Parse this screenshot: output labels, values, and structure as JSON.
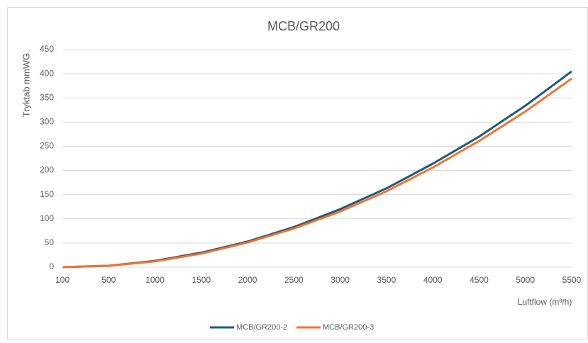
{
  "chart_data": {
    "type": "line",
    "title": "MCB/GR200",
    "y_label": "Tryktab mmWG",
    "x_label": "Luftflow (m³/h)",
    "categories": [
      "100",
      "500",
      "1000",
      "1500",
      "2000",
      "2500",
      "3000",
      "3500",
      "4000",
      "4500",
      "5000",
      "5500"
    ],
    "series": [
      {
        "name": "MCB/GR200-2",
        "color": "#1d5b79",
        "values": [
          0,
          3,
          13,
          30,
          53,
          83,
          120,
          163,
          214,
          270,
          334,
          405
        ]
      },
      {
        "name": "MCB/GR200-3",
        "color": "#ee7433",
        "values": [
          0,
          3,
          12,
          28,
          51,
          80,
          115,
          157,
          206,
          261,
          322,
          390
        ]
      }
    ],
    "ylim": [
      0,
      450
    ],
    "yticks": [
      0,
      50,
      100,
      150,
      200,
      250,
      300,
      350,
      400,
      450
    ],
    "grid": true,
    "legend": "bottom"
  }
}
